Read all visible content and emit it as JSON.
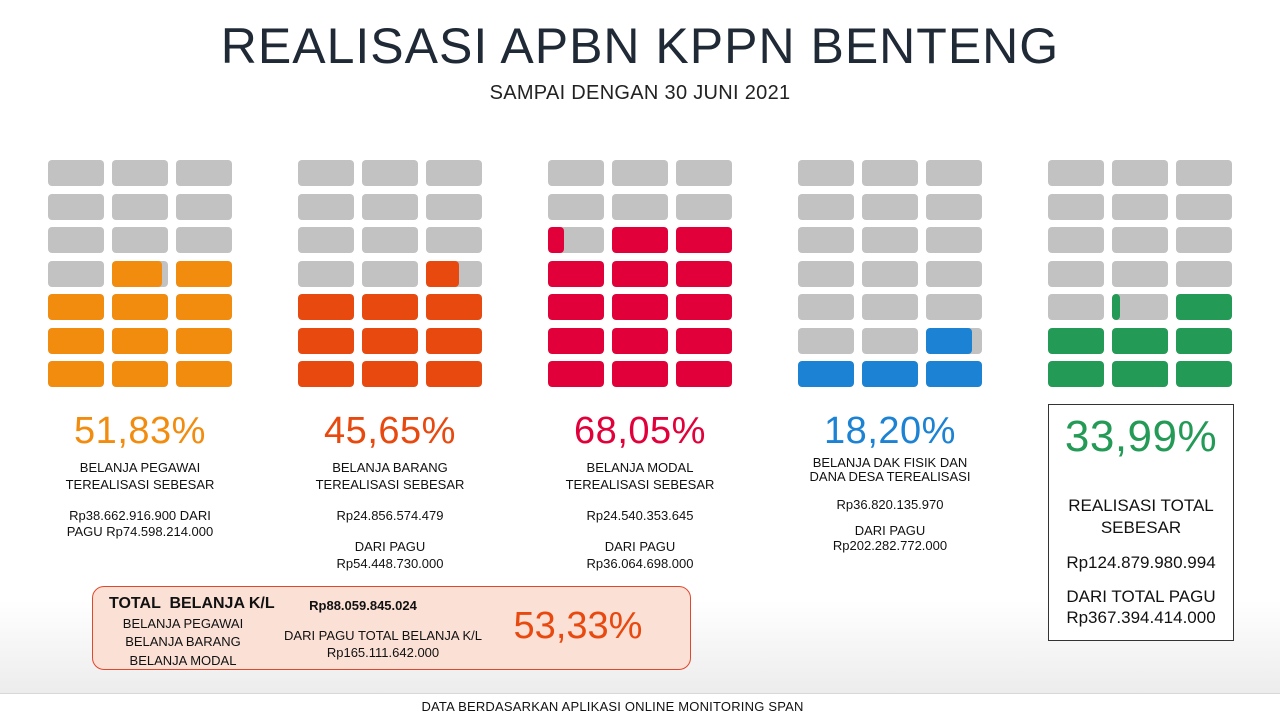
{
  "title": "REALISASI APBN KPPN BENTENG",
  "subtitle": "SAMPAI DENGAN 30 JUNI 2021",
  "colors": {
    "pegawai": "#f28c0f",
    "barang": "#e8490f",
    "modal": "#e1003a",
    "dak": "#1b82d4",
    "total": "#239a55",
    "empty": "#c2c2c2"
  },
  "cards": [
    {
      "percentage": "51,83%",
      "progress": 0.5183,
      "label_line1": "BELANJA PEGAWAI",
      "label_line2": "TEREALISASI SEBESAR",
      "amount_line1": "Rp38.662.916.900 DARI",
      "amount_line2": "PAGU Rp74.598.214.000",
      "amount_line3": ""
    },
    {
      "percentage": "45,65%",
      "progress": 0.4565,
      "label_line1": "BELANJA BARANG",
      "label_line2": "TEREALISASI SEBESAR",
      "amount_line1": "Rp24.856.574.479",
      "amount_line2": "DARI PAGU",
      "amount_line3": "Rp54.448.730.000"
    },
    {
      "percentage": "68,05%",
      "progress": 0.6805,
      "label_line1": "BELANJA MODAL",
      "label_line2": "TEREALISASI SEBESAR",
      "amount_line1": "Rp24.540.353.645",
      "amount_line2": "DARI PAGU",
      "amount_line3": "Rp36.064.698.000"
    },
    {
      "percentage": "18,20%",
      "progress": 0.182,
      "label_line1": "BELANJA DAK FISIK DAN",
      "label_line2": "DANA DESA TEREALISASI",
      "amount_line1": "Rp36.820.135.970",
      "amount_line2": "DARI PAGU",
      "amount_line3": "Rp202.282.772.000"
    },
    {
      "percentage": "33,99%",
      "progress": 0.3399,
      "label_line1": "REALISASI TOTAL",
      "label_line2": "SEBESAR",
      "amount_line1": "Rp124.879.980.994",
      "amount_line2": "DARI TOTAL PAGU",
      "amount_line3": "Rp367.394.414.000"
    }
  ],
  "total_kl": {
    "heading": "TOTAL  BELANJA K/L",
    "items": [
      "BELANJA PEGAWAI",
      "BELANJA BARANG",
      "BELANJA MODAL"
    ],
    "amount": "Rp88.059.845.024",
    "pagu_label": "DARI PAGU TOTAL BELANJA K/L",
    "pagu_amount": "Rp165.111.642.000",
    "percentage": "53,33%"
  },
  "footer": "DATA BERDASARKAN APLIKASI ONLINE MONITORING SPAN"
}
